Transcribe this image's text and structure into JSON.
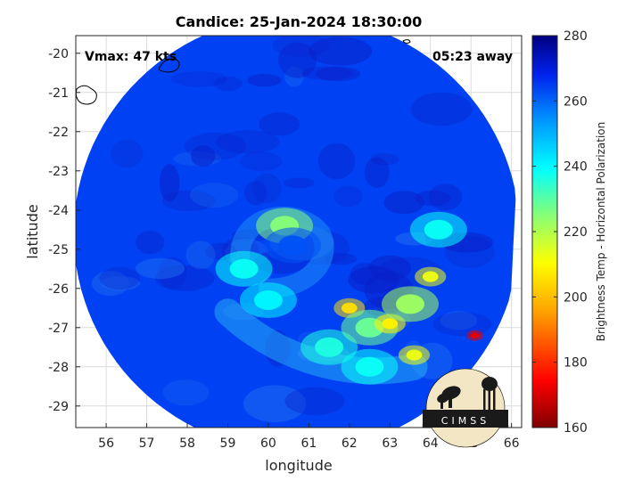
{
  "chart_data": {
    "type": "heatmap",
    "title": "Candice: 25-Jan-2024 18:30:00",
    "xlabel": "longitude",
    "ylabel": "latitude",
    "xlim": [
      55.25,
      66.25
    ],
    "ylim": [
      -29.55,
      -19.55
    ],
    "xticks": [
      56,
      57,
      58,
      59,
      60,
      61,
      62,
      63,
      64,
      65,
      66
    ],
    "yticks": [
      -20,
      -21,
      -22,
      -23,
      -24,
      -25,
      -26,
      -27,
      -28,
      -29
    ],
    "grid": true,
    "annotations": {
      "vmax": "Vmax: 47 kts",
      "away": "05:23 away"
    },
    "colorbar": {
      "label": "Brightness Temp - Horizontal Polarization",
      "min": 160,
      "max": 280,
      "ticks": [
        280,
        260,
        240,
        220,
        200,
        180,
        160
      ],
      "colormap": "parula-jet"
    },
    "swath": {
      "center": [
        60.7,
        -24.6
      ],
      "shape": "circular swath clipped at right edge",
      "background_value": 264
    },
    "features": [
      {
        "lon": 60.4,
        "lat": -24.4,
        "value": 225
      },
      {
        "lon": 60.6,
        "lat": -24.9,
        "value": 262
      },
      {
        "lon": 59.4,
        "lat": -25.5,
        "value": 238
      },
      {
        "lon": 60.0,
        "lat": -26.3,
        "value": 240
      },
      {
        "lon": 61.5,
        "lat": -27.5,
        "value": 236
      },
      {
        "lon": 62.0,
        "lat": -26.5,
        "value": 205
      },
      {
        "lon": 62.5,
        "lat": -27.0,
        "value": 228
      },
      {
        "lon": 63.0,
        "lat": -26.9,
        "value": 208
      },
      {
        "lon": 63.5,
        "lat": -26.4,
        "value": 222
      },
      {
        "lon": 64.0,
        "lat": -25.7,
        "value": 212
      },
      {
        "lon": 63.6,
        "lat": -27.7,
        "value": 212
      },
      {
        "lon": 65.1,
        "lat": -27.2,
        "value": 172
      },
      {
        "lon": 62.5,
        "lat": -28.0,
        "value": 238
      },
      {
        "lon": 64.2,
        "lat": -24.5,
        "value": 238
      }
    ]
  },
  "logo": {
    "text": "CIMSS"
  }
}
